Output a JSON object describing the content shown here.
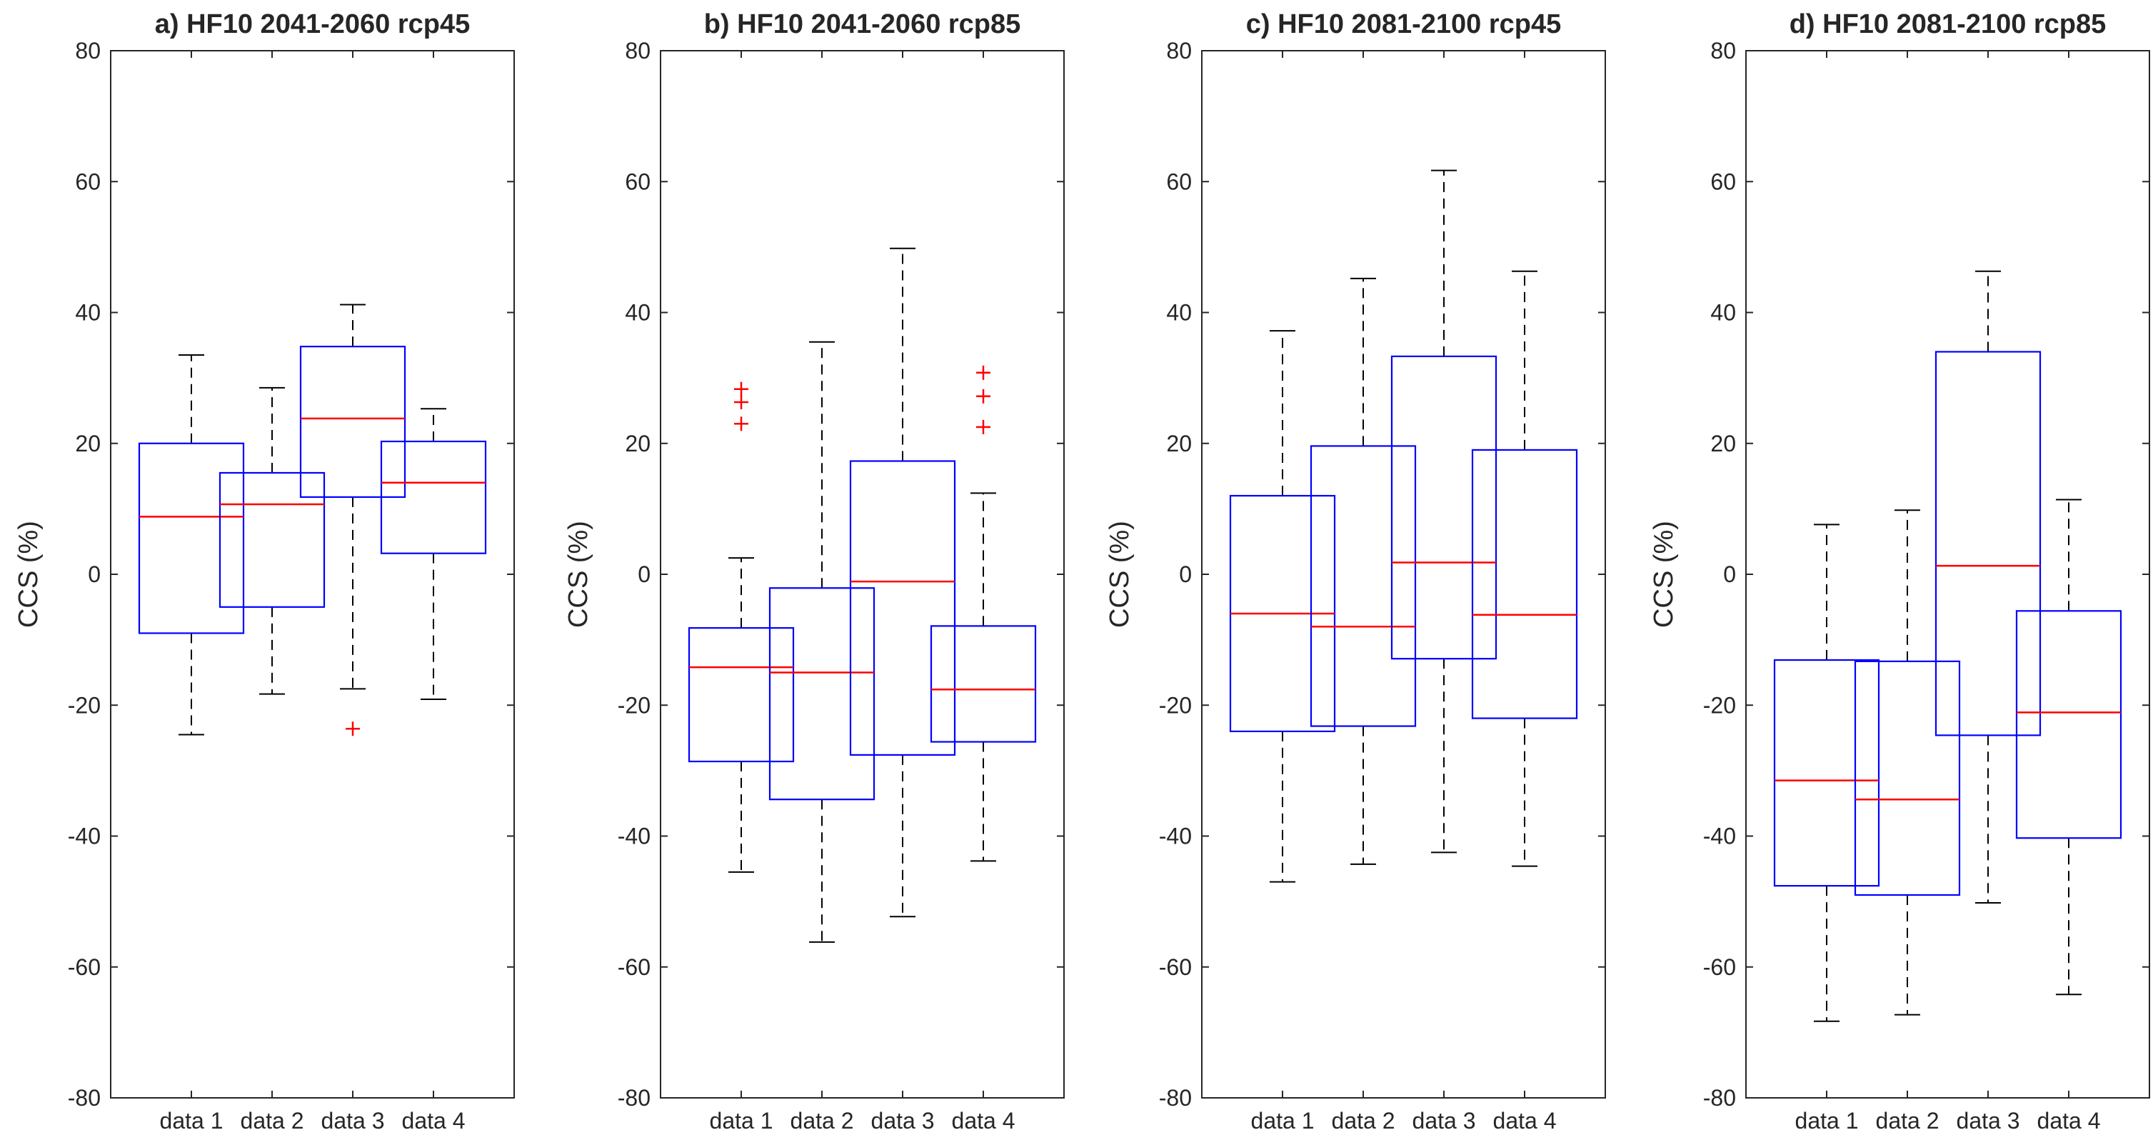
{
  "chart_data": [
    {
      "type": "boxplot",
      "title": "a) HF10 2041-2060 rcp45",
      "ylabel": "CCS (%)",
      "ylim": [
        -80,
        80
      ],
      "yticks": [
        "80",
        "60",
        "40",
        "20",
        "0",
        "-20",
        "-40",
        "-60",
        "-80"
      ],
      "categories": [
        "data 1",
        "data 2",
        "data 3",
        "data 4"
      ],
      "boxes": [
        {
          "whisker_low": -24.5,
          "q1": -9,
          "median": 8.8,
          "q3": 20,
          "whisker_high": 33.5,
          "outliers": []
        },
        {
          "whisker_low": -18.3,
          "q1": -5,
          "median": 10.7,
          "q3": 15.5,
          "whisker_high": 28.5,
          "outliers": []
        },
        {
          "whisker_low": -17.5,
          "q1": 11.8,
          "median": 23.8,
          "q3": 34.8,
          "whisker_high": 41.2,
          "outliers": [
            -23.6
          ]
        },
        {
          "whisker_low": -19.1,
          "q1": 3.2,
          "median": 14,
          "q3": 20.3,
          "whisker_high": 25.3,
          "outliers": []
        }
      ]
    },
    {
      "type": "boxplot",
      "title": "b) HF10 2041-2060 rcp85",
      "ylabel": "CCS (%)",
      "ylim": [
        -80,
        80
      ],
      "yticks": [
        "80",
        "60",
        "40",
        "20",
        "0",
        "-20",
        "-40",
        "-60",
        "-80"
      ],
      "categories": [
        "data 1",
        "data 2",
        "data 3",
        "data 4"
      ],
      "boxes": [
        {
          "whisker_low": -45.5,
          "q1": -28.6,
          "median": -14.2,
          "q3": -8.2,
          "whisker_high": 2.5,
          "outliers": [
            28.3,
            26.3,
            23
          ]
        },
        {
          "whisker_low": -56.2,
          "q1": -34.4,
          "median": -15,
          "q3": -2.1,
          "whisker_high": 35.5,
          "outliers": []
        },
        {
          "whisker_low": -52.3,
          "q1": -27.6,
          "median": -1.1,
          "q3": 17.3,
          "whisker_high": 49.8,
          "outliers": []
        },
        {
          "whisker_low": -43.8,
          "q1": -25.6,
          "median": -17.6,
          "q3": -7.9,
          "whisker_high": 12.4,
          "outliers": [
            30.8,
            27.2,
            22.5
          ]
        }
      ]
    },
    {
      "type": "boxplot",
      "title": "c) HF10 2081-2100 rcp45",
      "ylabel": "CCS (%)",
      "ylim": [
        -80,
        80
      ],
      "yticks": [
        "80",
        "60",
        "40",
        "20",
        "0",
        "-20",
        "-40",
        "-60",
        "-80"
      ],
      "categories": [
        "data 1",
        "data 2",
        "data 3",
        "data 4"
      ],
      "boxes": [
        {
          "whisker_low": -47,
          "q1": -24,
          "median": -6,
          "q3": 12,
          "whisker_high": 37.2,
          "outliers": []
        },
        {
          "whisker_low": -44.3,
          "q1": -23.2,
          "median": -8,
          "q3": 19.6,
          "whisker_high": 45.2,
          "outliers": []
        },
        {
          "whisker_low": -42.5,
          "q1": -12.9,
          "median": 1.8,
          "q3": 33.3,
          "whisker_high": 61.7,
          "outliers": []
        },
        {
          "whisker_low": -44.6,
          "q1": -22,
          "median": -6.2,
          "q3": 19,
          "whisker_high": 46.3,
          "outliers": []
        }
      ]
    },
    {
      "type": "boxplot",
      "title": "d) HF10 2081-2100 rcp85",
      "ylabel": "CCS (%)",
      "ylim": [
        -80,
        80
      ],
      "yticks": [
        "80",
        "60",
        "40",
        "20",
        "0",
        "-20",
        "-40",
        "-60",
        "-80"
      ],
      "categories": [
        "data 1",
        "data 2",
        "data 3",
        "data 4"
      ],
      "boxes": [
        {
          "whisker_low": -68.3,
          "q1": -47.6,
          "median": -31.5,
          "q3": -13.1,
          "whisker_high": 7.6,
          "outliers": []
        },
        {
          "whisker_low": -67.3,
          "q1": -49,
          "median": -34.4,
          "q3": -13.3,
          "whisker_high": 9.8,
          "outliers": []
        },
        {
          "whisker_low": -50.2,
          "q1": -24.6,
          "median": 1.3,
          "q3": 34,
          "whisker_high": 46.3,
          "outliers": []
        },
        {
          "whisker_low": -64.2,
          "q1": -40.3,
          "median": -21.1,
          "q3": -5.6,
          "whisker_high": 11.4,
          "outliers": []
        }
      ]
    }
  ]
}
